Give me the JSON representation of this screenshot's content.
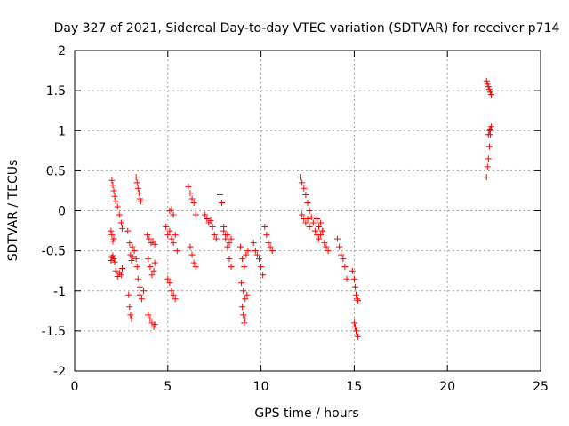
{
  "chart_data": {
    "type": "scatter",
    "title": "Day 327 of 2021, Sidereal Day-to-day VTEC variation (SDTVAR) for receiver p714",
    "xlabel": "GPS time / hours",
    "ylabel": "SDTVAR / TECUs",
    "xlim": [
      0,
      25
    ],
    "ylim": [
      -2,
      2
    ],
    "xticks": [
      0,
      5,
      10,
      15,
      20,
      25
    ],
    "yticks": [
      -2,
      -1.5,
      -1,
      -0.5,
      0,
      0.5,
      1,
      1.5,
      2
    ],
    "xtick_labels": [
      "0",
      "5",
      "10",
      "15",
      "20",
      "25"
    ],
    "ytick_labels": [
      "-2",
      "-1.5",
      "-1",
      "-0.5",
      "0",
      "0.5",
      "1",
      "1.5",
      "2"
    ],
    "grid": true,
    "marker": "+",
    "series": [
      {
        "name": "SDTVAR",
        "color": "#ff0000",
        "segments": [
          {
            "x": [
              1.95,
              2.0,
              2.05,
              2.1,
              2.15
            ],
            "y": [
              -0.62,
              -0.58,
              -0.56,
              -0.6,
              -0.64
            ]
          },
          {
            "x": [
              1.95,
              2.0,
              2.05,
              2.1
            ],
            "y": [
              -0.25,
              -0.3,
              -0.38,
              -0.35
            ]
          },
          {
            "x": [
              2.0,
              2.05,
              2.1,
              2.15,
              2.2,
              2.3,
              2.4,
              2.5,
              2.55
            ],
            "y": [
              0.38,
              0.32,
              0.25,
              0.18,
              0.12,
              0.05,
              -0.05,
              -0.15,
              -0.22
            ]
          },
          {
            "x": [
              2.2,
              2.3,
              2.4,
              2.5,
              2.55
            ],
            "y": [
              -0.75,
              -0.82,
              -0.78,
              -0.8,
              -0.72
            ]
          },
          {
            "x": [
              2.85,
              2.95,
              3.0,
              3.05,
              3.1
            ],
            "y": [
              -0.25,
              -0.4,
              -0.55,
              -0.62,
              -0.58
            ]
          },
          {
            "x": [
              2.9,
              2.95,
              3.0,
              3.05
            ],
            "y": [
              -1.05,
              -1.2,
              -1.3,
              -1.35
            ]
          },
          {
            "x": [
              3.1,
              3.2,
              3.3,
              3.35,
              3.4,
              3.5
            ],
            "y": [
              -0.45,
              -0.5,
              -0.6,
              -0.7,
              -0.85,
              -0.95
            ]
          },
          {
            "x": [
              3.3,
              3.35,
              3.4,
              3.45,
              3.5,
              3.55
            ],
            "y": [
              0.42,
              0.35,
              0.28,
              0.22,
              0.15,
              0.12
            ]
          },
          {
            "x": [
              3.5,
              3.6,
              3.7
            ],
            "y": [
              -1.05,
              -1.1,
              -1.0
            ]
          },
          {
            "x": [
              3.9,
              4.0,
              4.1,
              4.2,
              4.3
            ],
            "y": [
              -0.3,
              -0.35,
              -0.4,
              -0.38,
              -0.42
            ]
          },
          {
            "x": [
              3.95,
              4.05,
              4.15,
              4.25,
              4.3
            ],
            "y": [
              -0.6,
              -0.7,
              -0.8,
              -0.75,
              -0.65
            ]
          },
          {
            "x": [
              3.95,
              4.05,
              4.15,
              4.25,
              4.3
            ],
            "y": [
              -1.3,
              -1.35,
              -1.4,
              -1.45,
              -1.42
            ]
          },
          {
            "x": [
              4.9,
              5.0,
              5.1,
              5.2,
              5.3,
              5.4,
              5.5
            ],
            "y": [
              -0.2,
              -0.3,
              -0.25,
              -0.35,
              -0.4,
              -0.3,
              -0.5
            ]
          },
          {
            "x": [
              5.0,
              5.1,
              5.2,
              5.3,
              5.4
            ],
            "y": [
              -0.85,
              -0.9,
              -1.0,
              -1.05,
              -1.1
            ]
          },
          {
            "x": [
              5.1,
              5.2,
              5.3
            ],
            "y": [
              0.0,
              0.02,
              -0.05
            ]
          },
          {
            "x": [
              6.1,
              6.2,
              6.3,
              6.4,
              6.5
            ],
            "y": [
              0.3,
              0.22,
              0.15,
              0.1,
              -0.05
            ]
          },
          {
            "x": [
              6.2,
              6.3,
              6.4,
              6.5
            ],
            "y": [
              -0.45,
              -0.55,
              -0.65,
              -0.7
            ]
          },
          {
            "x": [
              7.0,
              7.1,
              7.2,
              7.3,
              7.4,
              7.5,
              7.6
            ],
            "y": [
              -0.05,
              -0.1,
              -0.15,
              -0.12,
              -0.2,
              -0.3,
              -0.35
            ]
          },
          {
            "x": [
              7.8,
              7.9,
              8.0,
              8.1,
              8.2,
              8.3,
              8.4
            ],
            "y": [
              0.2,
              0.1,
              -0.2,
              -0.3,
              -0.45,
              -0.6,
              -0.7
            ]
          },
          {
            "x": [
              8.0,
              8.1,
              8.2,
              8.3,
              8.4
            ],
            "y": [
              -0.25,
              -0.35,
              -0.3,
              -0.4,
              -0.35
            ]
          },
          {
            "x": [
              8.9,
              9.0,
              9.1,
              9.2,
              9.3
            ],
            "y": [
              -0.45,
              -0.6,
              -0.7,
              -0.55,
              -0.5
            ]
          },
          {
            "x": [
              8.95,
              9.05,
              9.15,
              9.25
            ],
            "y": [
              -0.9,
              -1.0,
              -1.1,
              -1.05
            ]
          },
          {
            "x": [
              9.0,
              9.05,
              9.1,
              9.15
            ],
            "y": [
              -1.2,
              -1.3,
              -1.4,
              -1.35
            ]
          },
          {
            "x": [
              9.6,
              9.7,
              9.8,
              9.9,
              10.0,
              10.1
            ],
            "y": [
              -0.4,
              -0.5,
              -0.55,
              -0.6,
              -0.7,
              -0.8
            ]
          },
          {
            "x": [
              10.2,
              10.3,
              10.4,
              10.5,
              10.6
            ],
            "y": [
              -0.2,
              -0.3,
              -0.4,
              -0.45,
              -0.5
            ]
          },
          {
            "x": [
              12.1,
              12.2,
              12.3,
              12.4,
              12.5,
              12.6,
              12.7
            ],
            "y": [
              0.42,
              0.35,
              0.28,
              0.2,
              0.1,
              0.0,
              -0.08
            ]
          },
          {
            "x": [
              12.2,
              12.3,
              12.4,
              12.5,
              12.6
            ],
            "y": [
              -0.05,
              -0.1,
              -0.15,
              -0.1,
              -0.2
            ]
          },
          {
            "x": [
              12.8,
              12.9,
              13.0,
              13.1,
              13.2,
              13.3,
              13.4,
              13.5,
              13.6
            ],
            "y": [
              -0.15,
              -0.25,
              -0.3,
              -0.35,
              -0.3,
              -0.25,
              -0.4,
              -0.45,
              -0.5
            ]
          },
          {
            "x": [
              13.0,
              13.1,
              13.2,
              13.3
            ],
            "y": [
              -0.1,
              -0.2,
              -0.15,
              -0.25
            ]
          },
          {
            "x": [
              14.1,
              14.2,
              14.3,
              14.4,
              14.5,
              14.6
            ],
            "y": [
              -0.35,
              -0.45,
              -0.55,
              -0.6,
              -0.7,
              -0.85
            ]
          },
          {
            "x": [
              14.9,
              15.0,
              15.05,
              15.1,
              15.15,
              15.2
            ],
            "y": [
              -0.75,
              -0.85,
              -0.95,
              -1.05,
              -1.1,
              -1.12
            ]
          },
          {
            "x": [
              15.0,
              15.05,
              15.1,
              15.15,
              15.2
            ],
            "y": [
              -1.4,
              -1.45,
              -1.5,
              -1.55,
              -1.57
            ]
          },
          {
            "x": [
              22.1,
              22.15,
              22.2,
              22.25,
              22.3,
              22.35
            ],
            "y": [
              1.62,
              1.58,
              1.55,
              1.52,
              1.48,
              1.45
            ]
          },
          {
            "x": [
              22.1,
              22.15,
              22.2,
              22.25,
              22.3
            ],
            "y": [
              0.42,
              0.55,
              0.65,
              0.8,
              0.95
            ]
          },
          {
            "x": [
              22.2,
              22.25,
              22.3,
              22.35
            ],
            "y": [
              0.95,
              1.0,
              1.02,
              1.05
            ]
          }
        ]
      }
    ]
  }
}
